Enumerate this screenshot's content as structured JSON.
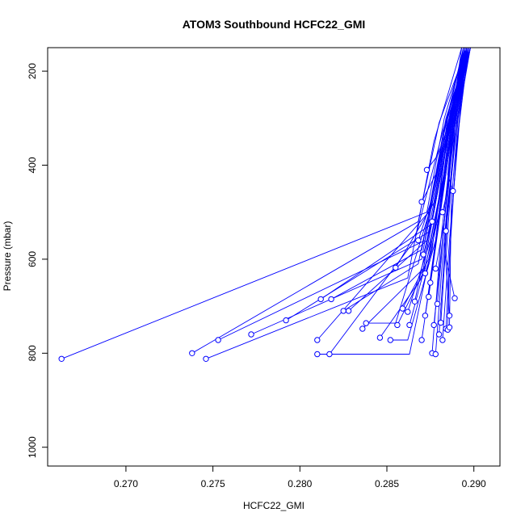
{
  "chart_data": {
    "type": "line",
    "title": "ATOM3 Southbound HCFC22_GMI",
    "xlabel": "HCFC22_GMI",
    "ylabel": "Pressure (mbar)",
    "xlim": [
      0.2655,
      0.2915
    ],
    "ylim": [
      1040,
      150
    ],
    "y_reversed": true,
    "x_ticks": [
      0.27,
      0.275,
      0.28,
      0.285,
      0.29
    ],
    "x_tick_labels": [
      "0.270",
      "0.275",
      "0.280",
      "0.285",
      "0.290"
    ],
    "y_ticks": [
      200,
      400,
      600,
      800,
      1000
    ],
    "y_tick_labels": [
      "200",
      "400",
      "600",
      "800",
      "1000"
    ],
    "series_color": "#0000ff",
    "marker": "open-circle",
    "grid": false,
    "legend": "none",
    "profiles": [
      {
        "x": [
          0.2663,
          0.2873,
          0.2883,
          0.2895
        ],
        "y": [
          812,
          500,
          300,
          150
        ]
      },
      {
        "x": [
          0.2738,
          0.2868,
          0.288,
          0.2896
        ],
        "y": [
          800,
          520,
          310,
          150
        ]
      },
      {
        "x": [
          0.2746,
          0.2862,
          0.2877,
          0.2893
        ],
        "y": [
          812,
          640,
          350,
          150
        ]
      },
      {
        "x": [
          0.2753,
          0.2872,
          0.2884,
          0.2897
        ],
        "y": [
          772,
          560,
          330,
          150
        ]
      },
      {
        "x": [
          0.2772,
          0.287,
          0.2882,
          0.2894
        ],
        "y": [
          760,
          600,
          340,
          150
        ]
      },
      {
        "x": [
          0.2792,
          0.2875,
          0.2885,
          0.2898
        ],
        "y": [
          730,
          540,
          300,
          150
        ]
      },
      {
        "x": [
          0.2812,
          0.2878,
          0.2886,
          0.2896
        ],
        "y": [
          685,
          520,
          310,
          150
        ]
      },
      {
        "x": [
          0.2818,
          0.287,
          0.2883,
          0.2894
        ],
        "y": [
          685,
          580,
          330,
          150
        ]
      },
      {
        "x": [
          0.281,
          0.2874,
          0.2884,
          0.2897
        ],
        "y": [
          772,
          500,
          300,
          150
        ]
      },
      {
        "x": [
          0.2825,
          0.2868,
          0.2882,
          0.2895
        ],
        "y": [
          710,
          610,
          360,
          150
        ]
      },
      {
        "x": [
          0.2828,
          0.2873,
          0.2885,
          0.2896
        ],
        "y": [
          710,
          560,
          320,
          150
        ]
      },
      {
        "x": [
          0.281,
          0.2836,
          0.2863,
          0.288,
          0.2893
        ],
        "y": [
          802,
          802,
          802,
          500,
          150
        ]
      },
      {
        "x": [
          0.2817,
          0.2866,
          0.2882,
          0.2897
        ],
        "y": [
          802,
          560,
          330,
          150
        ]
      },
      {
        "x": [
          0.2836,
          0.2871,
          0.2885,
          0.2898
        ],
        "y": [
          748,
          620,
          340,
          150
        ]
      },
      {
        "x": [
          0.2838,
          0.2855,
          0.2876,
          0.2887,
          0.2895
        ],
        "y": [
          736,
          736,
          480,
          300,
          150
        ]
      },
      {
        "x": [
          0.2846,
          0.287,
          0.2884,
          0.2896
        ],
        "y": [
          767,
          640,
          360,
          150
        ]
      },
      {
        "x": [
          0.2852,
          0.2862,
          0.2878,
          0.2886,
          0.2897
        ],
        "y": [
          772,
          772,
          560,
          320,
          150
        ]
      },
      {
        "x": [
          0.2856,
          0.2872,
          0.2885,
          0.2894
        ],
        "y": [
          740,
          620,
          380,
          150
        ]
      },
      {
        "x": [
          0.2859,
          0.2874,
          0.2886,
          0.2896
        ],
        "y": [
          705,
          600,
          360,
          150
        ]
      },
      {
        "x": [
          0.2855,
          0.2877,
          0.2885,
          0.2898
        ],
        "y": [
          618,
          480,
          320,
          150
        ]
      },
      {
        "x": [
          0.2862,
          0.2875,
          0.2887,
          0.2895
        ],
        "y": [
          712,
          560,
          340,
          150
        ]
      },
      {
        "x": [
          0.2863,
          0.2878,
          0.2886,
          0.2897
        ],
        "y": [
          740,
          530,
          300,
          150
        ]
      },
      {
        "x": [
          0.2866,
          0.2879,
          0.2888,
          0.2896
        ],
        "y": [
          690,
          460,
          290,
          150
        ]
      },
      {
        "x": [
          0.287,
          0.288,
          0.2887,
          0.2894
        ],
        "y": [
          772,
          520,
          320,
          150
        ]
      },
      {
        "x": [
          0.2872,
          0.2881,
          0.2888,
          0.2897
        ],
        "y": [
          720,
          480,
          300,
          150
        ]
      },
      {
        "x": [
          0.2874,
          0.2882,
          0.2889,
          0.2898
        ],
        "y": [
          680,
          470,
          290,
          150
        ]
      },
      {
        "x": [
          0.2875,
          0.288,
          0.2887,
          0.2895
        ],
        "y": [
          650,
          500,
          310,
          150
        ]
      },
      {
        "x": [
          0.2876,
          0.2881,
          0.2888,
          0.2896
        ],
        "y": [
          800,
          560,
          330,
          150
        ]
      },
      {
        "x": [
          0.2878,
          0.2882,
          0.2889,
          0.2897
        ],
        "y": [
          802,
          600,
          340,
          150
        ]
      },
      {
        "x": [
          0.2877,
          0.2883,
          0.2888,
          0.2894
        ],
        "y": [
          740,
          520,
          320,
          150
        ]
      },
      {
        "x": [
          0.2879,
          0.2884,
          0.2889,
          0.2898
        ],
        "y": [
          695,
          480,
          300,
          150
        ]
      },
      {
        "x": [
          0.288,
          0.2884,
          0.289,
          0.2896
        ],
        "y": [
          760,
          540,
          320,
          150
        ]
      },
      {
        "x": [
          0.2881,
          0.2885,
          0.289,
          0.2897
        ],
        "y": [
          735,
          500,
          310,
          150
        ]
      },
      {
        "x": [
          0.2882,
          0.2886,
          0.2891,
          0.2895
        ],
        "y": [
          772,
          560,
          340,
          150
        ]
      },
      {
        "x": [
          0.2884,
          0.2887,
          0.2891,
          0.2897
        ],
        "y": [
          748,
          520,
          330,
          150
        ]
      },
      {
        "x": [
          0.2885,
          0.2886,
          0.289,
          0.2896
        ],
        "y": [
          750,
          600,
          360,
          150
        ]
      },
      {
        "x": [
          0.2886,
          0.2887,
          0.2891,
          0.2898
        ],
        "y": [
          745,
          480,
          300,
          150
        ]
      },
      {
        "x": [
          0.2889,
          0.2884,
          0.2889,
          0.2895
        ],
        "y": [
          683,
          600,
          320,
          150
        ]
      },
      {
        "x": [
          0.2886,
          0.2883,
          0.2888,
          0.2897
        ],
        "y": [
          720,
          560,
          330,
          150
        ]
      },
      {
        "x": [
          0.2873,
          0.2879,
          0.2887,
          0.2894
        ],
        "y": [
          410,
          380,
          300,
          150
        ]
      },
      {
        "x": [
          0.2888,
          0.2885,
          0.2888,
          0.2896
        ],
        "y": [
          455,
          420,
          310,
          150
        ]
      },
      {
        "x": [
          0.287,
          0.2878,
          0.2886,
          0.2895
        ],
        "y": [
          478,
          420,
          300,
          150
        ]
      },
      {
        "x": [
          0.2868,
          0.2876,
          0.2884,
          0.2897
        ],
        "y": [
          560,
          470,
          330,
          150
        ]
      },
      {
        "x": [
          0.2871,
          0.2877,
          0.2885,
          0.2898
        ],
        "y": [
          590,
          500,
          320,
          150
        ]
      },
      {
        "x": [
          0.2878,
          0.2883,
          0.2888,
          0.2896
        ],
        "y": [
          620,
          520,
          340,
          150
        ]
      },
      {
        "x": [
          0.2872,
          0.2876,
          0.2884,
          0.2894
        ],
        "y": [
          630,
          580,
          350,
          150
        ]
      },
      {
        "x": [
          0.2876,
          0.288,
          0.2887,
          0.2895
        ],
        "y": [
          520,
          440,
          300,
          150
        ]
      },
      {
        "x": [
          0.2882,
          0.2885,
          0.2889,
          0.2897
        ],
        "y": [
          500,
          450,
          320,
          150
        ]
      },
      {
        "x": [
          0.2884,
          0.2886,
          0.289,
          0.2898
        ],
        "y": [
          540,
          470,
          310,
          150
        ]
      }
    ]
  }
}
